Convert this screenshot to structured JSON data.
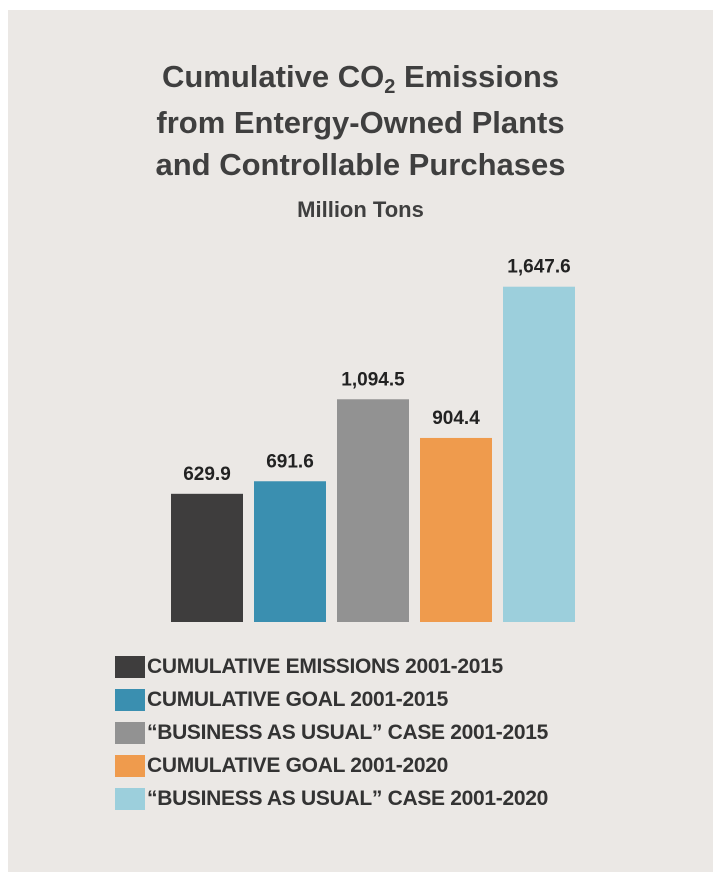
{
  "chart_data": {
    "type": "bar",
    "title": {
      "line1_pre": "Cumulative CO",
      "line1_sub": "2",
      "line1_post": " Emissions",
      "line2": "from Entergy-Owned Plants",
      "line3": "and Controllable Purchases"
    },
    "subtitle": "Million Tons",
    "ylim": [
      0,
      1800
    ],
    "series": [
      {
        "name": "CUMULATIVE EMISSIONS 2001-2015",
        "value": 629.9,
        "label": "629.9",
        "color": "#3e3d3d"
      },
      {
        "name": "CUMULATIVE GOAL 2001-2015",
        "value": 691.6,
        "label": "691.6",
        "color": "#3a8fb0"
      },
      {
        "name": "“BUSINESS AS USUAL” CASE 2001-2015",
        "value": 1094.5,
        "label": "1,094.5",
        "color": "#929292"
      },
      {
        "name": "CUMULATIVE GOAL 2001-2020",
        "value": 904.4,
        "label": "904.4",
        "color": "#ef9b4d"
      },
      {
        "name": "“BUSINESS AS USUAL” CASE 2001-2020",
        "value": 1647.6,
        "label": "1,647.6",
        "color": "#9ccfdc"
      }
    ],
    "legend_position": "bottom",
    "grid": false
  }
}
